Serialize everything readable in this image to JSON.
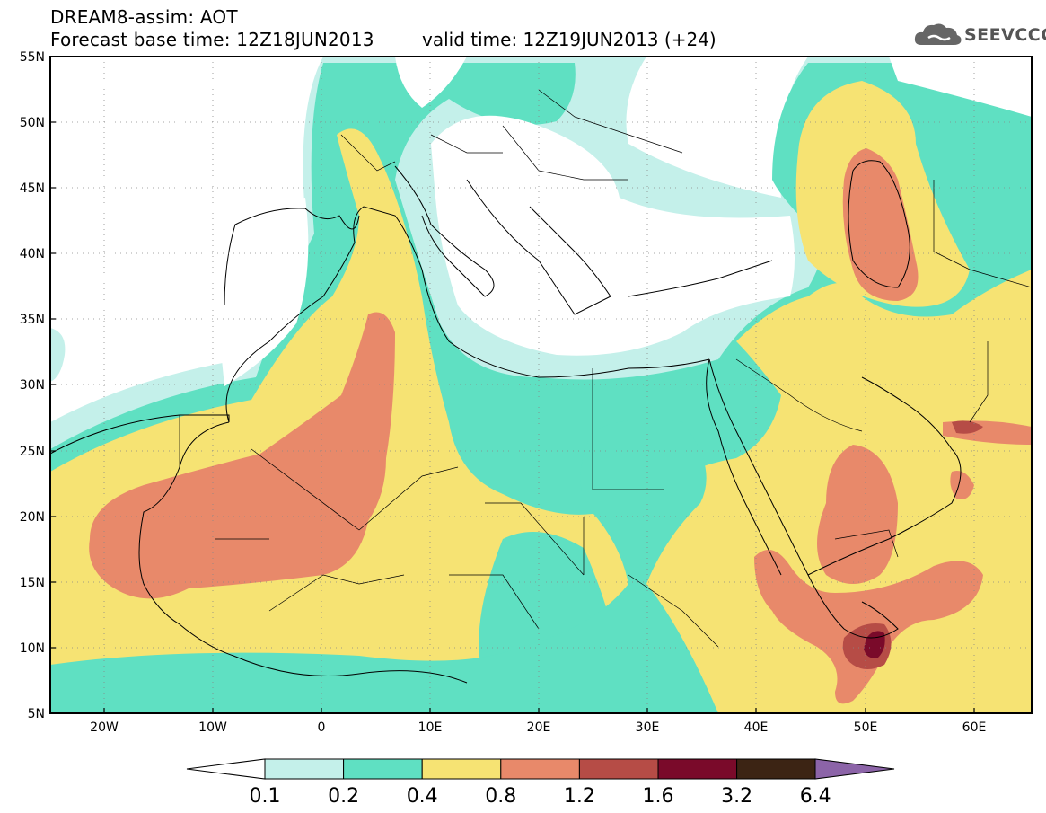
{
  "header": {
    "title": "DREAM8-assim: AOT",
    "base_time": "Forecast base time: 12Z18JUN2013",
    "valid_time": "valid time: 12Z19JUN2013 (+24)"
  },
  "logo": {
    "text": "SEEVCCC",
    "icon": "cloud-icon"
  },
  "map": {
    "lat_labels": [
      "55N",
      "50N",
      "45N",
      "40N",
      "35N",
      "30N",
      "25N",
      "20N",
      "15N",
      "10N",
      "5N"
    ],
    "lon_labels": [
      "20W",
      "10W",
      "0",
      "10E",
      "20E",
      "30E",
      "40E",
      "50E",
      "60E"
    ],
    "lon_range": [
      -25,
      65
    ],
    "lat_range": [
      5,
      55
    ],
    "field": "Aerosol optical thickness (AOT)"
  },
  "colorbar": {
    "bins": [
      {
        "color": "#c4f0ea"
      },
      {
        "color": "#5fe0c2"
      },
      {
        "color": "#f6e373"
      },
      {
        "color": "#e8896a"
      },
      {
        "color": "#b64c46"
      },
      {
        "color": "#7a0a2a"
      },
      {
        "color": "#3c2414"
      }
    ],
    "under_color": "#ffffff",
    "over_color": "#8c64a8",
    "labels": [
      "0.1",
      "0.2",
      "0.4",
      "0.8",
      "1.2",
      "1.6",
      "3.2",
      "6.4"
    ]
  }
}
